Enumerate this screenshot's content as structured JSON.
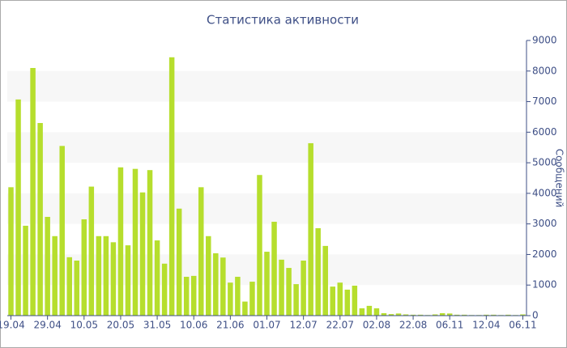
{
  "chart_data": {
    "type": "bar",
    "title": "Статистика активности",
    "y_label": "Сообщений",
    "categories": [
      "19.04",
      null,
      null,
      null,
      null,
      "29.04",
      null,
      null,
      null,
      null,
      "10.05",
      null,
      null,
      null,
      null,
      "20.05",
      null,
      null,
      null,
      null,
      "31.05",
      null,
      null,
      null,
      null,
      "10.06",
      null,
      null,
      null,
      null,
      "21.06",
      null,
      null,
      null,
      null,
      "01.07",
      null,
      null,
      null,
      null,
      "12.07",
      null,
      null,
      null,
      null,
      "22.07",
      null,
      null,
      null,
      null,
      "02.08",
      null,
      null,
      null,
      null,
      "22.08",
      null,
      null,
      null,
      null,
      "06.11",
      null,
      null,
      null,
      null,
      "12.04",
      null,
      null,
      null,
      null,
      "06.11"
    ],
    "values": [
      4200,
      7070,
      2940,
      8100,
      6300,
      3230,
      2600,
      5550,
      1910,
      1800,
      3150,
      4220,
      2600,
      2600,
      2400,
      4850,
      2300,
      4800,
      4030,
      4760,
      2460,
      1700,
      8450,
      3500,
      1270,
      1300,
      4200,
      2600,
      2040,
      1900,
      1080,
      1270,
      460,
      1110,
      4600,
      2090,
      3070,
      1830,
      1560,
      1030,
      1800,
      5640,
      2860,
      2280,
      950,
      1080,
      850,
      980,
      240,
      320,
      240,
      80,
      50,
      70,
      40,
      30,
      30,
      20,
      40,
      80,
      70,
      30,
      30,
      20,
      20,
      30,
      30,
      20,
      30,
      20,
      40
    ],
    "color": "#b6de2d",
    "ylim": [
      0,
      9000
    ],
    "yticks": [
      0,
      1000,
      2000,
      3000,
      4000,
      5000,
      6000,
      7000,
      8000,
      9000
    ],
    "y_axis_side": "right",
    "grid": "alternate-bands",
    "band_color": "#f7f7f7"
  }
}
